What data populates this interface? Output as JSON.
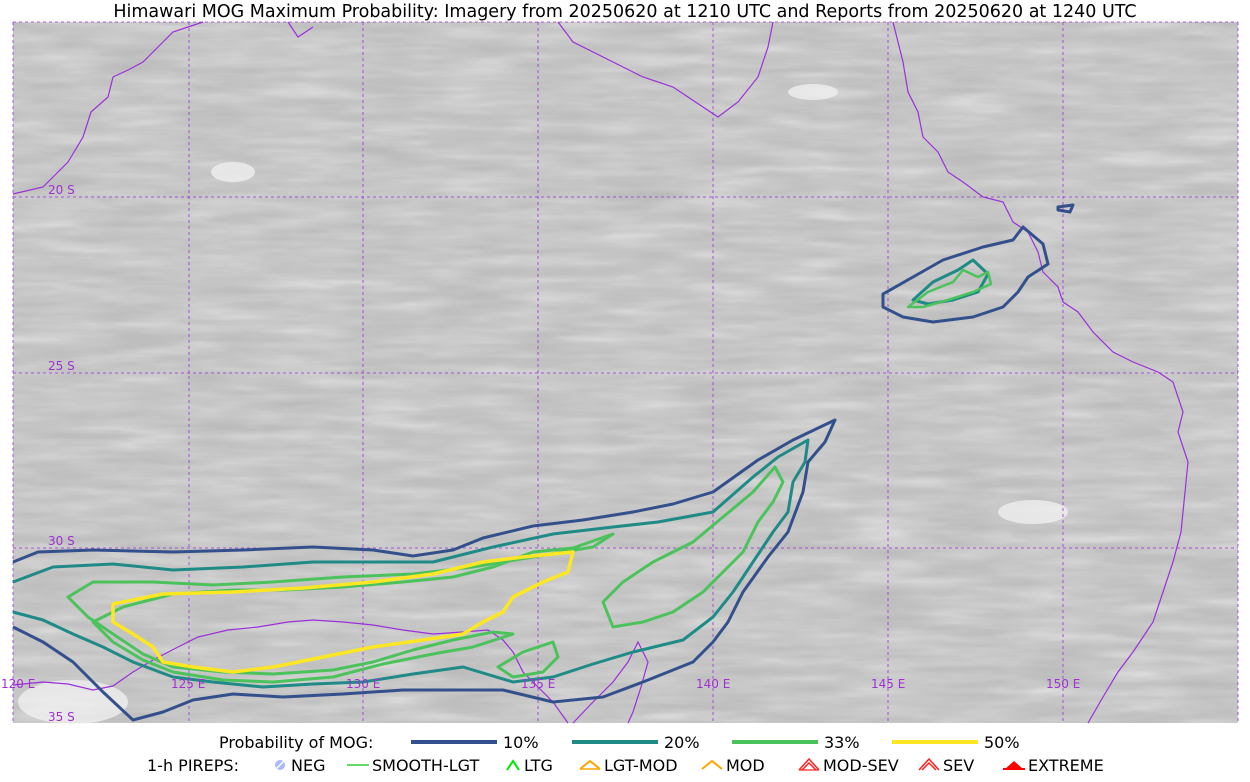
{
  "title": "Himawari MOG Maximum Probability: Imagery from 20250620 at 1210 UTC and Reports from 20250620 at 1240 UTC",
  "map": {
    "lat_labels": [
      "20 S",
      "25 S",
      "30 S",
      "35 S"
    ],
    "lon_labels": [
      "120 E",
      "125 E",
      "130 E",
      "135 E",
      "140 E",
      "145 E",
      "150 E"
    ],
    "gridline_color": "#9b30d9",
    "coastline_color": "#9b30d9",
    "background": "grayscale satellite imagery"
  },
  "legend": {
    "prob_label": "Probability of MOG:",
    "prob_items": [
      {
        "label": "10%",
        "color": "#34508c"
      },
      {
        "label": "20%",
        "color": "#1f8a86"
      },
      {
        "label": "33%",
        "color": "#4cc25d"
      },
      {
        "label": "50%",
        "color": "#fde725"
      }
    ],
    "pirep_label": "1-h PIREPS:",
    "pirep_items": [
      {
        "label": "NEG",
        "icon": "neg-icon",
        "color": "#a9b8ff"
      },
      {
        "label": "SMOOTH-LGT",
        "icon": "smooth-lgt-icon",
        "color": "#32cd32"
      },
      {
        "label": "LTG",
        "icon": "ltg-icon",
        "color": "#00e600"
      },
      {
        "label": "LGT-MOD",
        "icon": "lgt-mod-icon",
        "color": "#ffa500"
      },
      {
        "label": "MOD",
        "icon": "mod-icon",
        "color": "#ffa500"
      },
      {
        "label": "MOD-SEV",
        "icon": "mod-sev-icon",
        "color": "#ff2020"
      },
      {
        "label": "SEV",
        "icon": "sev-icon",
        "color": "#ff2020"
      },
      {
        "label": "EXTREME",
        "icon": "extreme-icon",
        "color": "#ff0000"
      }
    ]
  }
}
